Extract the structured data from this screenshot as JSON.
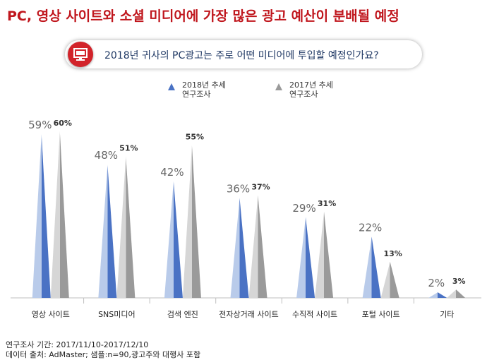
{
  "headline": "PC, 영상 사이트와 소셜 미디어에 가장 많은 광고 예산이 분배될 예정",
  "question": "2018년 귀사의 PC광고는 주로 어떤 미디어에 투입할 예정인가요?",
  "icon": "monitor-icon",
  "colors": {
    "headline": "#c0161d",
    "series_2018": "#4a72c4",
    "series_2018_light": "#b9cbea",
    "series_2017": "#9a9a9a",
    "series_2017_light": "#d6d6d6"
  },
  "footer": {
    "period": "연구조사 기간: 2017/11/10-2017/12/10",
    "source": "데이터 출처: AdMaster; 샘플:n=90,광고주와 대행사 포함"
  },
  "chart_data": {
    "type": "bar",
    "categories": [
      "영상 사이트",
      "SNS미디어",
      "검색 엔진",
      "전자상거래 사이트",
      "수직적 사이트",
      "포털 사이트",
      "기타"
    ],
    "series": [
      {
        "name": "2018년 추세\n연구조사",
        "values": [
          59,
          48,
          42,
          36,
          29,
          22,
          2
        ],
        "labels": [
          "59%",
          "48%",
          "42%",
          "36%",
          "29%",
          "22%",
          "2%"
        ]
      },
      {
        "name": "2017년 추세\n연구조사",
        "values": [
          60,
          51,
          55,
          37,
          31,
          13,
          3
        ],
        "labels": [
          "60%",
          "51%",
          "55%",
          "37%",
          "31%",
          "13%",
          "3%"
        ]
      }
    ],
    "ylim": [
      0,
      60
    ],
    "grid": false,
    "legend": "top"
  }
}
